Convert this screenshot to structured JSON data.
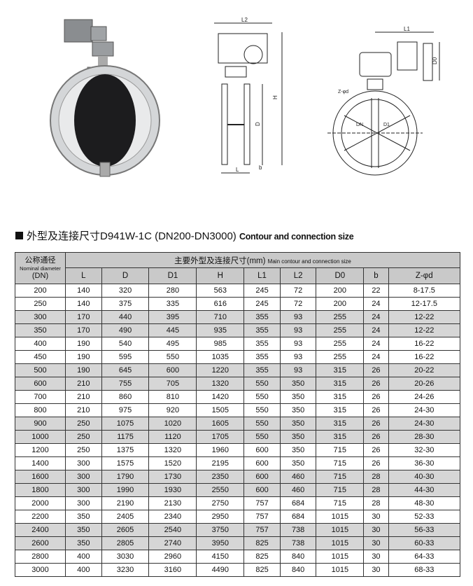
{
  "drawing_labels": {
    "l2": "L2",
    "h": "H",
    "d": "D",
    "b": "b",
    "l": "L",
    "l1": "L1",
    "d0": "D0",
    "z": "Z-φd",
    "dn": "DN",
    "d1": "D1"
  },
  "section": {
    "title_cn": "外型及连接尺寸D941W-1C (DN200-DN3000)",
    "title_en": "Contour and connection size"
  },
  "table": {
    "dn_header_cn": "公称通径",
    "dn_header_en": "Nominal diameter",
    "dn_header_unit": "(DN)",
    "group_header_cn": "主要外型及连接尺寸(mm)",
    "group_header_en": "Main contour and connection size",
    "columns": [
      "L",
      "D",
      "D1",
      "H",
      "L1",
      "L2",
      "D0",
      "b",
      "Z-φd"
    ],
    "rows": [
      [
        "200",
        "140",
        "320",
        "280",
        "563",
        "245",
        "72",
        "200",
        "22",
        "8-17.5"
      ],
      [
        "250",
        "140",
        "375",
        "335",
        "616",
        "245",
        "72",
        "200",
        "24",
        "12-17.5"
      ],
      [
        "300",
        "170",
        "440",
        "395",
        "710",
        "355",
        "93",
        "255",
        "24",
        "12-22"
      ],
      [
        "350",
        "170",
        "490",
        "445",
        "935",
        "355",
        "93",
        "255",
        "24",
        "12-22"
      ],
      [
        "400",
        "190",
        "540",
        "495",
        "985",
        "355",
        "93",
        "255",
        "24",
        "16-22"
      ],
      [
        "450",
        "190",
        "595",
        "550",
        "1035",
        "355",
        "93",
        "255",
        "24",
        "16-22"
      ],
      [
        "500",
        "190",
        "645",
        "600",
        "1220",
        "355",
        "93",
        "315",
        "26",
        "20-22"
      ],
      [
        "600",
        "210",
        "755",
        "705",
        "1320",
        "550",
        "350",
        "315",
        "26",
        "20-26"
      ],
      [
        "700",
        "210",
        "860",
        "810",
        "1420",
        "550",
        "350",
        "315",
        "26",
        "24-26"
      ],
      [
        "800",
        "210",
        "975",
        "920",
        "1505",
        "550",
        "350",
        "315",
        "26",
        "24-30"
      ],
      [
        "900",
        "250",
        "1075",
        "1020",
        "1605",
        "550",
        "350",
        "315",
        "26",
        "24-30"
      ],
      [
        "1000",
        "250",
        "1175",
        "1120",
        "1705",
        "550",
        "350",
        "315",
        "26",
        "28-30"
      ],
      [
        "1200",
        "250",
        "1375",
        "1320",
        "1960",
        "600",
        "350",
        "715",
        "26",
        "32-30"
      ],
      [
        "1400",
        "300",
        "1575",
        "1520",
        "2195",
        "600",
        "350",
        "715",
        "26",
        "36-30"
      ],
      [
        "1600",
        "300",
        "1790",
        "1730",
        "2350",
        "600",
        "460",
        "715",
        "28",
        "40-30"
      ],
      [
        "1800",
        "300",
        "1990",
        "1930",
        "2550",
        "600",
        "460",
        "715",
        "28",
        "44-30"
      ],
      [
        "2000",
        "300",
        "2190",
        "2130",
        "2750",
        "757",
        "684",
        "715",
        "28",
        "48-30"
      ],
      [
        "2200",
        "350",
        "2405",
        "2340",
        "2950",
        "757",
        "684",
        "1015",
        "30",
        "52-33"
      ],
      [
        "2400",
        "350",
        "2605",
        "2540",
        "3750",
        "757",
        "738",
        "1015",
        "30",
        "56-33"
      ],
      [
        "2600",
        "350",
        "2805",
        "2740",
        "3950",
        "825",
        "738",
        "1015",
        "30",
        "60-33"
      ],
      [
        "2800",
        "400",
        "3030",
        "2960",
        "4150",
        "825",
        "840",
        "1015",
        "30",
        "64-33"
      ],
      [
        "3000",
        "400",
        "3230",
        "3160",
        "4490",
        "825",
        "840",
        "1015",
        "30",
        "68-33"
      ]
    ]
  },
  "colors": {
    "header_bg": "#c9c9c9",
    "shaded_row": "#d6d6d6"
  }
}
